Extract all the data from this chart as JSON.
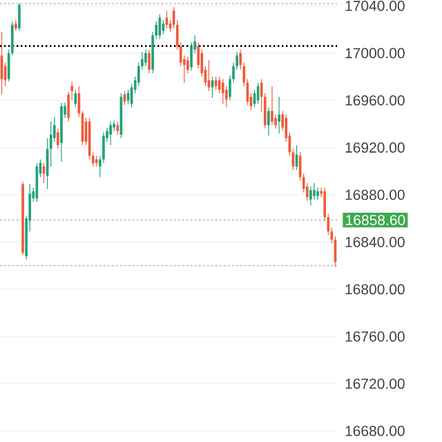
{
  "chart_data": {
    "type": "candlestick",
    "categories": [
      null,
      null,
      null,
      null,
      null,
      null,
      null,
      null,
      null,
      null,
      null,
      null,
      null,
      null,
      null,
      null,
      null,
      null,
      null,
      null,
      null,
      null,
      null,
      null,
      null,
      null,
      null,
      null,
      null,
      null,
      null,
      null,
      null,
      null,
      null,
      null,
      null,
      null,
      null,
      null,
      null,
      null,
      null,
      null,
      null,
      null,
      null,
      null,
      null,
      null,
      null,
      null,
      null,
      null,
      null,
      null,
      null,
      null,
      null,
      null,
      null,
      null,
      null,
      null,
      null,
      null,
      null,
      null,
      null,
      null,
      null,
      null,
      null,
      null,
      null,
      null,
      null,
      null,
      null,
      null,
      null,
      null,
      null,
      null,
      null,
      null,
      null,
      null,
      null,
      null,
      null,
      null,
      null,
      null,
      null,
      null
    ],
    "ohlc": [
      [
        16998,
        17018,
        16965,
        16978
      ],
      [
        16989,
        16992,
        16972,
        16977
      ],
      [
        16978,
        17003,
        16976,
        17000
      ],
      [
        17000,
        17027,
        16998,
        17024
      ],
      [
        17025,
        17028,
        17019,
        17021
      ],
      [
        17021,
        17042,
        17019,
        17041
      ],
      [
        16889,
        16891,
        16829,
        16831
      ],
      [
        16828,
        16862,
        16825,
        16860
      ],
      [
        16858,
        16889,
        16849,
        16881
      ],
      [
        16877,
        16886,
        16874,
        16883
      ],
      [
        16877,
        16907,
        16874,
        16904
      ],
      [
        16898,
        16910,
        16895,
        16907
      ],
      [
        16904,
        16907,
        16890,
        16898
      ],
      [
        16896,
        16928,
        16885,
        16919
      ],
      [
        16919,
        16942,
        16904,
        16931
      ],
      [
        16928,
        16946,
        16925,
        16939
      ],
      [
        16933,
        16936,
        16919,
        16922
      ],
      [
        16924,
        16958,
        16908,
        16955
      ],
      [
        16948,
        16958,
        16945,
        16955
      ],
      [
        16965,
        16967,
        16942,
        16945
      ],
      [
        16972,
        16976,
        16960,
        16968
      ],
      [
        16957,
        16969,
        16954,
        16966
      ],
      [
        16966,
        16972,
        16946,
        16949
      ],
      [
        16949,
        16951,
        16922,
        16925
      ],
      [
        16942,
        16945,
        16922,
        16925
      ],
      [
        16942,
        16945,
        16910,
        16913
      ],
      [
        16913,
        16916,
        16904,
        16907
      ],
      [
        16910,
        16913,
        16904,
        16907
      ],
      [
        16904,
        16913,
        16895,
        16910
      ],
      [
        16910,
        16933,
        16907,
        16930
      ],
      [
        16928,
        16937,
        16925,
        16934
      ],
      [
        16931,
        16942,
        16922,
        16939
      ],
      [
        16937,
        16943,
        16934,
        16940
      ],
      [
        16939,
        16942,
        16931,
        16934
      ],
      [
        16931,
        16966,
        16928,
        16963
      ],
      [
        16965,
        16968,
        16956,
        16959
      ],
      [
        16960,
        16969,
        16957,
        16966
      ],
      [
        16957,
        16974,
        16954,
        16971
      ],
      [
        16969,
        16980,
        16966,
        16977
      ],
      [
        16975,
        16992,
        16972,
        16989
      ],
      [
        16989,
        17001,
        16986,
        16995
      ],
      [
        16992,
        17003,
        16989,
        17000
      ],
      [
        17000,
        17003,
        16983,
        16986
      ],
      [
        16986,
        17018,
        16983,
        17015
      ],
      [
        17015,
        17027,
        17012,
        17024
      ],
      [
        17015,
        17033,
        17012,
        17030
      ],
      [
        17019,
        17028,
        17016,
        17025
      ],
      [
        17030,
        17036,
        17021,
        17024
      ],
      [
        17025,
        17028,
        17018,
        17021
      ],
      [
        17036,
        17039,
        17021,
        17024
      ],
      [
        17024,
        17028,
        17003,
        17006
      ],
      [
        17006,
        17009,
        16989,
        16992
      ],
      [
        16995,
        16998,
        16975,
        16990
      ],
      [
        16994,
        16997,
        16983,
        16986
      ],
      [
        16988,
        17009,
        16985,
        17006
      ],
      [
        17003,
        17015,
        17000,
        17010
      ],
      [
        17006,
        17009,
        16987,
        16990
      ],
      [
        17000,
        17003,
        16980,
        16983
      ],
      [
        16986,
        16989,
        16972,
        16975
      ],
      [
        16977,
        16994,
        16968,
        16971
      ],
      [
        16971,
        16980,
        16962,
        16977
      ],
      [
        16977,
        16980,
        16969,
        16972
      ],
      [
        16977,
        16980,
        16966,
        16969
      ],
      [
        16975,
        16978,
        16957,
        16966
      ],
      [
        16969,
        16972,
        16954,
        16961
      ],
      [
        16963,
        16981,
        16960,
        16978
      ],
      [
        16978,
        16992,
        16975,
        16989
      ],
      [
        16989,
        17001,
        16986,
        16998
      ],
      [
        17000,
        17003,
        16986,
        16990
      ],
      [
        16989,
        16992,
        16972,
        16975
      ],
      [
        16975,
        16978,
        16956,
        16959
      ],
      [
        16963,
        16966,
        16952,
        16955
      ],
      [
        16957,
        16969,
        16954,
        16966
      ],
      [
        16960,
        16975,
        16957,
        16972
      ],
      [
        16975,
        16978,
        16950,
        16963
      ],
      [
        16963,
        16966,
        16936,
        16939
      ],
      [
        16939,
        16954,
        16930,
        16951
      ],
      [
        16951,
        16972,
        16939,
        16942
      ],
      [
        16945,
        16948,
        16936,
        16939
      ],
      [
        16942,
        16963,
        16932,
        16948
      ],
      [
        16948,
        16951,
        16934,
        16937
      ],
      [
        16945,
        16948,
        16925,
        16928
      ],
      [
        16930,
        16933,
        16913,
        16916
      ],
      [
        16916,
        16919,
        16901,
        16904
      ],
      [
        16904,
        16922,
        16901,
        16914
      ],
      [
        16913,
        16916,
        16892,
        16895
      ],
      [
        16895,
        16898,
        16882,
        16885
      ],
      [
        16887,
        16890,
        16875,
        16878
      ],
      [
        16876,
        16887,
        16871,
        16884
      ],
      [
        16879,
        16890,
        16876,
        16884
      ],
      [
        16879,
        16886,
        16876,
        16883
      ],
      [
        16883,
        16886,
        16878,
        16881
      ],
      [
        16883,
        16886,
        16858,
        16861
      ],
      [
        16861,
        16864,
        16846,
        16849
      ],
      [
        16849,
        16852,
        16839,
        16842
      ],
      [
        16842,
        16845,
        16819,
        16823
      ]
    ],
    "ylim": [
      16680,
      17045
    ],
    "yticks": [
      {
        "value": 16680,
        "label": "16680.00"
      },
      {
        "value": 16720,
        "label": "16720.00"
      },
      {
        "value": 16760,
        "label": "16760.00"
      },
      {
        "value": 16800,
        "label": "16800.00"
      },
      {
        "value": 16840,
        "label": "16840.00"
      },
      {
        "value": 16880,
        "label": "16880.00"
      },
      {
        "value": 16920,
        "label": "16920.00"
      },
      {
        "value": 16960,
        "label": "16960.00"
      },
      {
        "value": 17000,
        "label": "17000.00"
      },
      {
        "value": 17040,
        "label": "17040.00"
      }
    ],
    "grid": "y",
    "ref_lines": [
      {
        "axis": "y",
        "value": 17042,
        "color": "#9e9e9e",
        "line_style": "dotted"
      },
      {
        "axis": "y",
        "value": 17006,
        "color": "#000000",
        "line_style": "dotted"
      },
      {
        "axis": "y",
        "value": 16858.6,
        "label": "16858.60",
        "color": "#9e9e9e",
        "line_style": "dotted"
      },
      {
        "axis": "y",
        "value": 16820,
        "color": "#9e9e9e",
        "line_style": "dotted"
      }
    ]
  }
}
